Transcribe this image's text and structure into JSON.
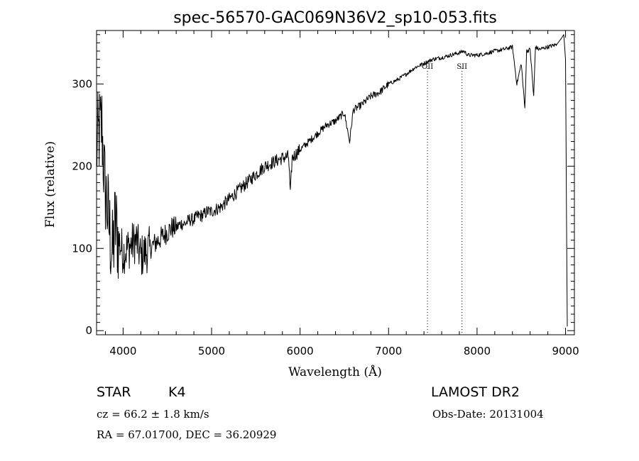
{
  "chart_data": {
    "type": "line",
    "title": "spec-56570-GAC069N36V2_sp10-053.fits",
    "xlabel": "Wavelength (Å)",
    "ylabel": "Flux (relative)",
    "xlim": [
      3700,
      9100
    ],
    "ylim": [
      -5,
      365
    ],
    "xticks": [
      4000,
      5000,
      6000,
      7000,
      8000,
      9000
    ],
    "yticks": [
      0,
      100,
      200,
      300
    ],
    "grid": false,
    "legend": "none",
    "line_color": "#000000",
    "series": [
      {
        "x": [
          3700,
          3730,
          3760,
          3790,
          3820,
          3850,
          3880,
          3910,
          3950,
          4000,
          4050,
          4100,
          4150,
          4200,
          4250,
          4300,
          4350,
          4400,
          4450,
          4500,
          4550,
          4600,
          4650,
          4700,
          4750,
          4800,
          4850,
          4900,
          4950,
          5000,
          5100,
          5200,
          5300,
          5400,
          5500,
          5600,
          5700,
          5800,
          5870,
          5890,
          5910,
          6000,
          6100,
          6200,
          6300,
          6400,
          6500,
          6560,
          6600,
          6700,
          6800,
          6900,
          7000,
          7100,
          7200,
          7300,
          7400,
          7500,
          7600,
          7700,
          7800,
          7850,
          7900,
          8000,
          8100,
          8200,
          8300,
          8400,
          8450,
          8500,
          8540,
          8560,
          8600,
          8640,
          8660,
          8700,
          8800,
          8900,
          8950,
          8980,
          9000,
          9010,
          9020
        ],
        "y": [
          220,
          240,
          250,
          180,
          150,
          120,
          90,
          130,
          110,
          95,
          100,
          105,
          110,
          90,
          95,
          100,
          105,
          110,
          115,
          120,
          125,
          125,
          130,
          130,
          135,
          135,
          140,
          140,
          145,
          145,
          150,
          160,
          170,
          180,
          190,
          200,
          205,
          210,
          212,
          165,
          210,
          220,
          230,
          240,
          250,
          255,
          265,
          230,
          268,
          275,
          285,
          290,
          300,
          305,
          312,
          320,
          325,
          330,
          332,
          335,
          338,
          340,
          335,
          335,
          337,
          340,
          342,
          345,
          300,
          325,
          270,
          340,
          342,
          285,
          345,
          342,
          345,
          348,
          355,
          360,
          330,
          150,
          5
        ]
      }
    ],
    "line_labels": [
      {
        "text": "OII",
        "x": 7440
      },
      {
        "text": "SII",
        "x": 7830
      }
    ]
  },
  "info": {
    "class": "STAR",
    "subclass": "K4",
    "survey": "LAMOST DR2",
    "cz": "cz = 66.2 ± 1.8 km/s",
    "obs_date": "Obs-Date: 20131004",
    "coords": "RA =  67.01700, DEC =  36.20929"
  }
}
